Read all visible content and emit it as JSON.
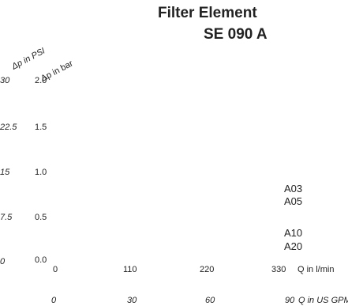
{
  "chart_data": {
    "type": "line",
    "title_lines": [
      "Filter Element",
      "SE 090 A"
    ],
    "y_label_bar": "Δp in bar",
    "y_label_psi": "Δp in PSI",
    "x_label_lmin": "Q in l/min",
    "x_label_usgpm": "Q in US GPM",
    "y_ticks_bar": [
      "2.0",
      "1.5",
      "1.0",
      "0.5",
      "0.0"
    ],
    "y_ticks_psi": [
      "30",
      "22.5",
      "15",
      "7.5",
      "0"
    ],
    "x_ticks_lmin": [
      "0",
      "110",
      "220",
      "330"
    ],
    "x_ticks_usgpm": [
      "0",
      "30",
      "60",
      "90"
    ],
    "xlim": [
      0,
      330
    ],
    "ylim": [
      0,
      2.0
    ],
    "grid": false,
    "series": [
      {
        "name": "A03",
        "values": []
      },
      {
        "name": "A05",
        "values": []
      },
      {
        "name": "A10",
        "values": []
      },
      {
        "name": "A20",
        "values": []
      }
    ]
  }
}
